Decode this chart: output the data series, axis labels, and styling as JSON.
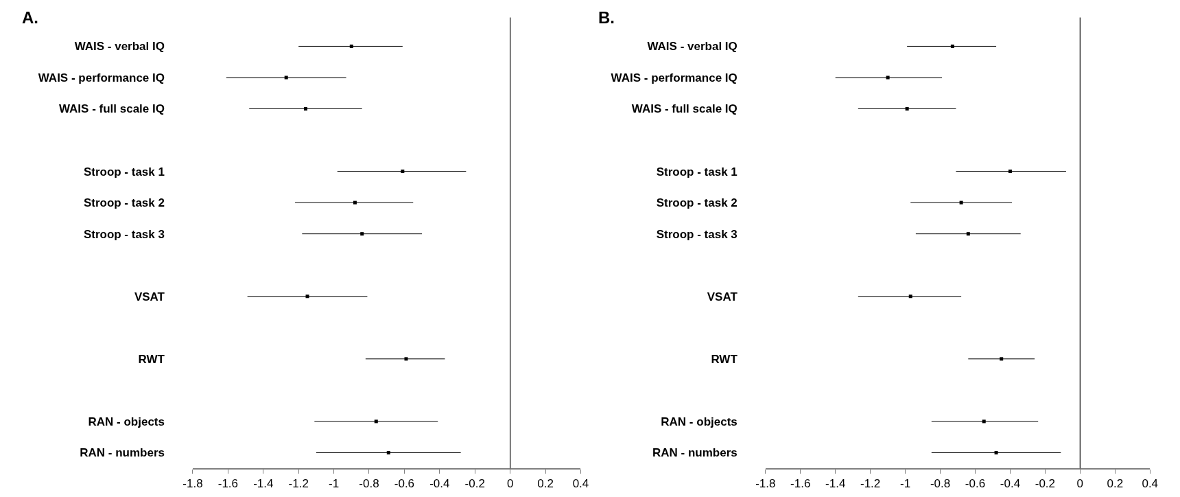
{
  "chart_data": [
    {
      "type": "scatter",
      "title": "A.",
      "orientation": "horizontal",
      "marker": "square",
      "categories": [
        "WAIS - verbal IQ",
        "WAIS - performance IQ",
        "WAIS - full scale IQ",
        null,
        "Stroop - task 1",
        "Stroop - task 2",
        "Stroop - task 3",
        null,
        "VSAT",
        null,
        "RWT",
        null,
        "RAN - objects",
        "RAN - numbers"
      ],
      "series": [
        {
          "color": "#000000",
          "values": [
            -0.9,
            -1.27,
            -1.16,
            null,
            -0.61,
            -0.88,
            -0.84,
            null,
            -1.15,
            null,
            -0.59,
            null,
            -0.76,
            -0.69
          ],
          "errors": [
            [
              -1.2,
              -0.61
            ],
            [
              -1.61,
              -0.93
            ],
            [
              -1.48,
              -0.84
            ],
            null,
            [
              -0.98,
              -0.25
            ],
            [
              -1.22,
              -0.55
            ],
            [
              -1.18,
              -0.5
            ],
            null,
            [
              -1.49,
              -0.81
            ],
            null,
            [
              -0.82,
              -0.37
            ],
            null,
            [
              -1.11,
              -0.41
            ],
            [
              -1.1,
              -0.28
            ]
          ]
        }
      ],
      "xlim": [
        -1.8,
        0.4
      ],
      "xticks": [
        -1.8,
        -1.6,
        -1.4,
        -1.2,
        -1,
        -0.8,
        -0.6,
        -0.4,
        -0.2,
        0,
        0.2,
        0.4
      ],
      "ref_lines": [
        {
          "axis": "x",
          "value": 0,
          "color": "#000000"
        }
      ]
    },
    {
      "type": "scatter",
      "title": "B.",
      "orientation": "horizontal",
      "marker": "square",
      "categories": [
        "WAIS - verbal IQ",
        "WAIS - performance IQ",
        "WAIS - full scale IQ",
        null,
        "Stroop - task 1",
        "Stroop - task 2",
        "Stroop - task 3",
        null,
        "VSAT",
        null,
        "RWT",
        null,
        "RAN - objects",
        "RAN - numbers"
      ],
      "series": [
        {
          "color": "#000000",
          "values": [
            -0.73,
            -1.1,
            -0.99,
            null,
            -0.4,
            -0.68,
            -0.64,
            null,
            -0.97,
            null,
            -0.45,
            null,
            -0.55,
            -0.48
          ],
          "errors": [
            [
              -0.99,
              -0.48
            ],
            [
              -1.4,
              -0.79
            ],
            [
              -1.27,
              -0.71
            ],
            null,
            [
              -0.71,
              -0.08
            ],
            [
              -0.97,
              -0.39
            ],
            [
              -0.94,
              -0.34
            ],
            null,
            [
              -1.27,
              -0.68
            ],
            null,
            [
              -0.64,
              -0.26
            ],
            null,
            [
              -0.85,
              -0.24
            ],
            [
              -0.85,
              -0.11
            ]
          ]
        }
      ],
      "xlim": [
        -1.8,
        0.4
      ],
      "xticks": [
        -1.8,
        -1.6,
        -1.4,
        -1.2,
        -1,
        -0.8,
        -0.6,
        -0.4,
        -0.2,
        0,
        0.2,
        0.4
      ],
      "ref_lines": [
        {
          "axis": "x",
          "value": 0,
          "color": "#000000"
        }
      ]
    }
  ]
}
